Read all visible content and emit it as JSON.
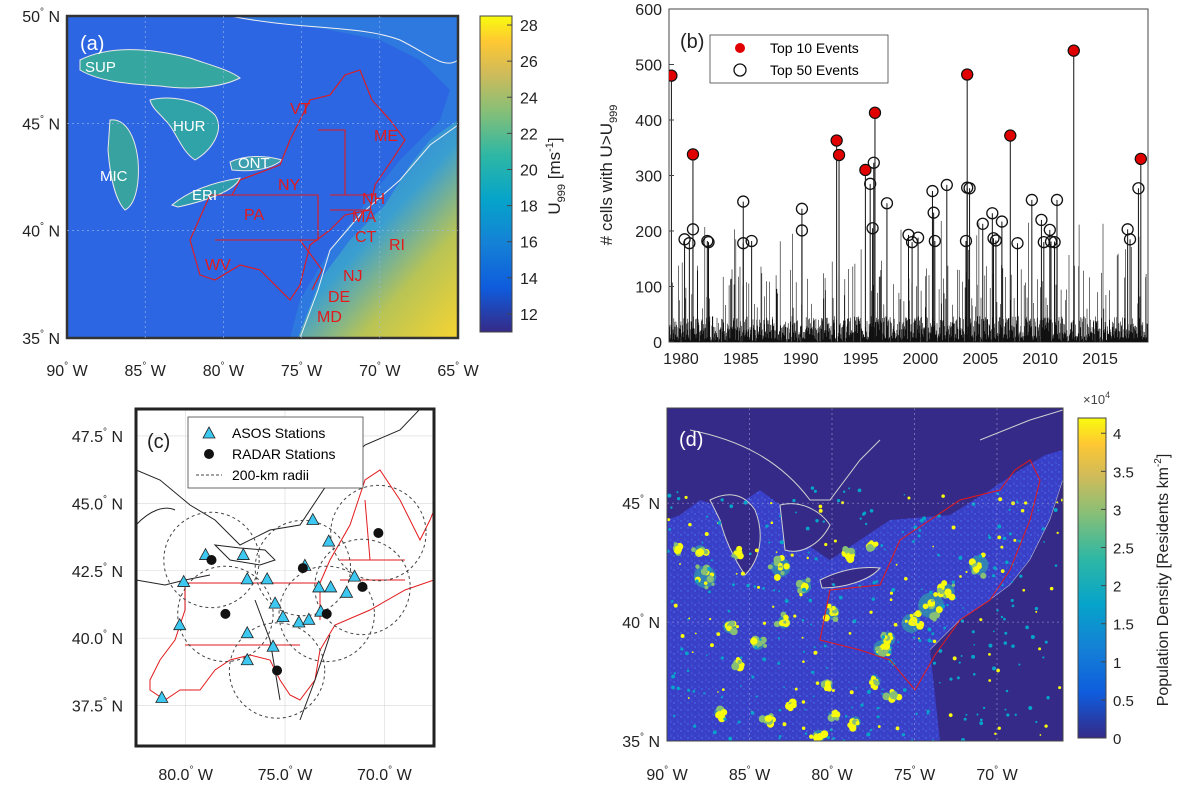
{
  "colors": {
    "parula": [
      "#352a87",
      "#0f5cdd",
      "#1481d6",
      "#06a4ca",
      "#2eb7a4",
      "#87bf77",
      "#d1bb59",
      "#fec832",
      "#f9fb0e"
    ],
    "state_lines": "#e31a1c",
    "coast_white": "#f0f0f0",
    "marker_red": "#e00000",
    "triangle_cyan": "#3cc8f0"
  },
  "chart_data": [
    {
      "type": "heatmap",
      "panel": "(a)",
      "xlabel": "",
      "ylabel": "",
      "x_ticks": [
        "90° W",
        "85° W",
        "80° W",
        "75° W",
        "70° W",
        "65° W"
      ],
      "y_ticks": [
        "35° N",
        "40° N",
        "45° N",
        "50° N"
      ],
      "xlim": [
        -90,
        -65
      ],
      "ylim": [
        35,
        50
      ],
      "colorbar": {
        "label": "U999 [ms-1]",
        "label_main": "U",
        "label_sub": "999",
        "label_unit": " [ms",
        "label_exp": "-1",
        "label_close": "]",
        "ticks": [
          "12",
          "14",
          "16",
          "18",
          "20",
          "22",
          "24",
          "26",
          "28"
        ],
        "range": [
          11,
          28.5
        ]
      },
      "lake_labels": [
        "SUP",
        "HUR",
        "MIC",
        "ONT",
        "ERI"
      ],
      "state_labels": [
        "VT",
        "ME",
        "NY",
        "NH",
        "MA",
        "PA",
        "CT",
        "RI",
        "WV",
        "NJ",
        "DE",
        "MD"
      ]
    },
    {
      "type": "scatter",
      "panel": "(b)",
      "xlabel": "",
      "ylabel": "# cells with U>U999",
      "ylabel_main": "# cells with U>U",
      "ylabel_sub": "999",
      "xlim": [
        1979,
        2019
      ],
      "ylim": [
        0,
        600
      ],
      "x_ticks": [
        "1980",
        "1985",
        "1990",
        "1995",
        "2000",
        "2005",
        "2010",
        "2015"
      ],
      "y_ticks": [
        "0",
        "100",
        "200",
        "300",
        "400",
        "500",
        "600"
      ],
      "legend": {
        "placement": "top-left",
        "entries": [
          "Top 10 Events",
          "Top 50 Events"
        ]
      },
      "series": [
        {
          "name": "Top 10 Events",
          "points": [
            [
              1979.2,
              480
            ],
            [
              1981.0,
              338
            ],
            [
              1993.0,
              363
            ],
            [
              1993.2,
              337
            ],
            [
              1995.4,
              310
            ],
            [
              1996.2,
              413
            ],
            [
              2003.9,
              482
            ],
            [
              2007.5,
              372
            ],
            [
              2012.8,
              525
            ],
            [
              2018.4,
              330
            ]
          ]
        },
        {
          "name": "Top 50 Events",
          "points": [
            [
              1979.2,
              480
            ],
            [
              1980.3,
              185
            ],
            [
              1980.7,
              178
            ],
            [
              1981.0,
              203
            ],
            [
              1981.0,
              338
            ],
            [
              1982.2,
              182
            ],
            [
              1982.3,
              180
            ],
            [
              1985.2,
              178
            ],
            [
              1985.2,
              253
            ],
            [
              1985.9,
              182
            ],
            [
              1990.1,
              240
            ],
            [
              1990.1,
              201
            ],
            [
              1993.0,
              363
            ],
            [
              1993.2,
              337
            ],
            [
              1995.4,
              310
            ],
            [
              1995.8,
              285
            ],
            [
              1996.0,
              205
            ],
            [
              1996.1,
              323
            ],
            [
              1996.2,
              413
            ],
            [
              1997.2,
              250
            ],
            [
              1999.0,
              193
            ],
            [
              1999.3,
              180
            ],
            [
              1999.8,
              188
            ],
            [
              2001.0,
              272
            ],
            [
              2001.1,
              233
            ],
            [
              2001.2,
              182
            ],
            [
              2002.2,
              283
            ],
            [
              2003.8,
              182
            ],
            [
              2003.9,
              278
            ],
            [
              2003.9,
              482
            ],
            [
              2004.1,
              277
            ],
            [
              2005.2,
              213
            ],
            [
              2006.0,
              232
            ],
            [
              2006.1,
              187
            ],
            [
              2006.3,
              183
            ],
            [
              2006.8,
              217
            ],
            [
              2007.5,
              372
            ],
            [
              2008.1,
              178
            ],
            [
              2009.3,
              256
            ],
            [
              2010.1,
              220
            ],
            [
              2010.3,
              180
            ],
            [
              2010.8,
              202
            ],
            [
              2010.9,
              181
            ],
            [
              2011.2,
              180
            ],
            [
              2011.4,
              256
            ],
            [
              2017.3,
              203
            ],
            [
              2017.5,
              185
            ],
            [
              2018.2,
              277
            ],
            [
              2018.4,
              330
            ],
            [
              2012.8,
              525
            ]
          ]
        }
      ]
    },
    {
      "type": "scatter",
      "panel": "(c)",
      "xlabel": "",
      "ylabel": "",
      "xlim": [
        -82.5,
        -67.5
      ],
      "ylim": [
        36,
        48.5
      ],
      "x_ticks": [
        "80.0° W",
        "75.0° W",
        "70.0° W"
      ],
      "y_ticks": [
        "37.5° N",
        "40.0° N",
        "42.5° N",
        "45.0° N",
        "47.5° N"
      ],
      "legend": {
        "placement": "top-left",
        "entries": [
          "ASOS Stations",
          "RADAR Stations",
          "200-km radii"
        ]
      },
      "series": [
        {
          "name": "ASOS Stations",
          "points": [
            [
              -79.0,
              43.1
            ],
            [
              -77.1,
              43.1
            ],
            [
              -80.1,
              42.1
            ],
            [
              -76.9,
              42.2
            ],
            [
              -75.9,
              42.2
            ],
            [
              -73.6,
              44.4
            ],
            [
              -74.0,
              42.7
            ],
            [
              -73.3,
              41.9
            ],
            [
              -72.7,
              41.9
            ],
            [
              -71.5,
              42.3
            ],
            [
              -71.9,
              41.7
            ],
            [
              -72.8,
              43.6
            ],
            [
              -75.5,
              41.3
            ],
            [
              -75.1,
              40.8
            ],
            [
              -74.3,
              40.6
            ],
            [
              -73.8,
              40.7
            ],
            [
              -73.2,
              41.0
            ],
            [
              -76.9,
              40.2
            ],
            [
              -75.6,
              39.7
            ],
            [
              -76.9,
              39.2
            ],
            [
              -80.3,
              40.5
            ],
            [
              -81.2,
              37.8
            ]
          ]
        },
        {
          "name": "RADAR Stations",
          "points": [
            [
              -78.7,
              42.9
            ],
            [
              -78.0,
              40.9
            ],
            [
              -74.1,
              42.6
            ],
            [
              -71.1,
              41.9
            ],
            [
              -70.3,
              43.9
            ],
            [
              -72.9,
              40.9
            ],
            [
              -75.4,
              38.8
            ]
          ]
        }
      ]
    },
    {
      "type": "heatmap",
      "panel": "(d)",
      "xlabel": "",
      "ylabel": "",
      "x_ticks": [
        "90° W",
        "85° W",
        "80° W",
        "75° W",
        "70° W"
      ],
      "y_ticks": [
        "35° N",
        "40° N",
        "45° N"
      ],
      "xlim": [
        -90,
        -66
      ],
      "ylim": [
        35,
        49
      ],
      "colorbar": {
        "label": "Population Density [Residents km-2]",
        "label_main": "Population Density [Residents km",
        "label_exp": "-2",
        "label_close": "]",
        "ticks": [
          "0",
          "0.5",
          "1",
          "1.5",
          "2",
          "2.5",
          "3",
          "3.5",
          "4"
        ],
        "multiplier": "×10",
        "multiplier_exp": "4",
        "range": [
          0,
          4.2
        ]
      }
    }
  ]
}
